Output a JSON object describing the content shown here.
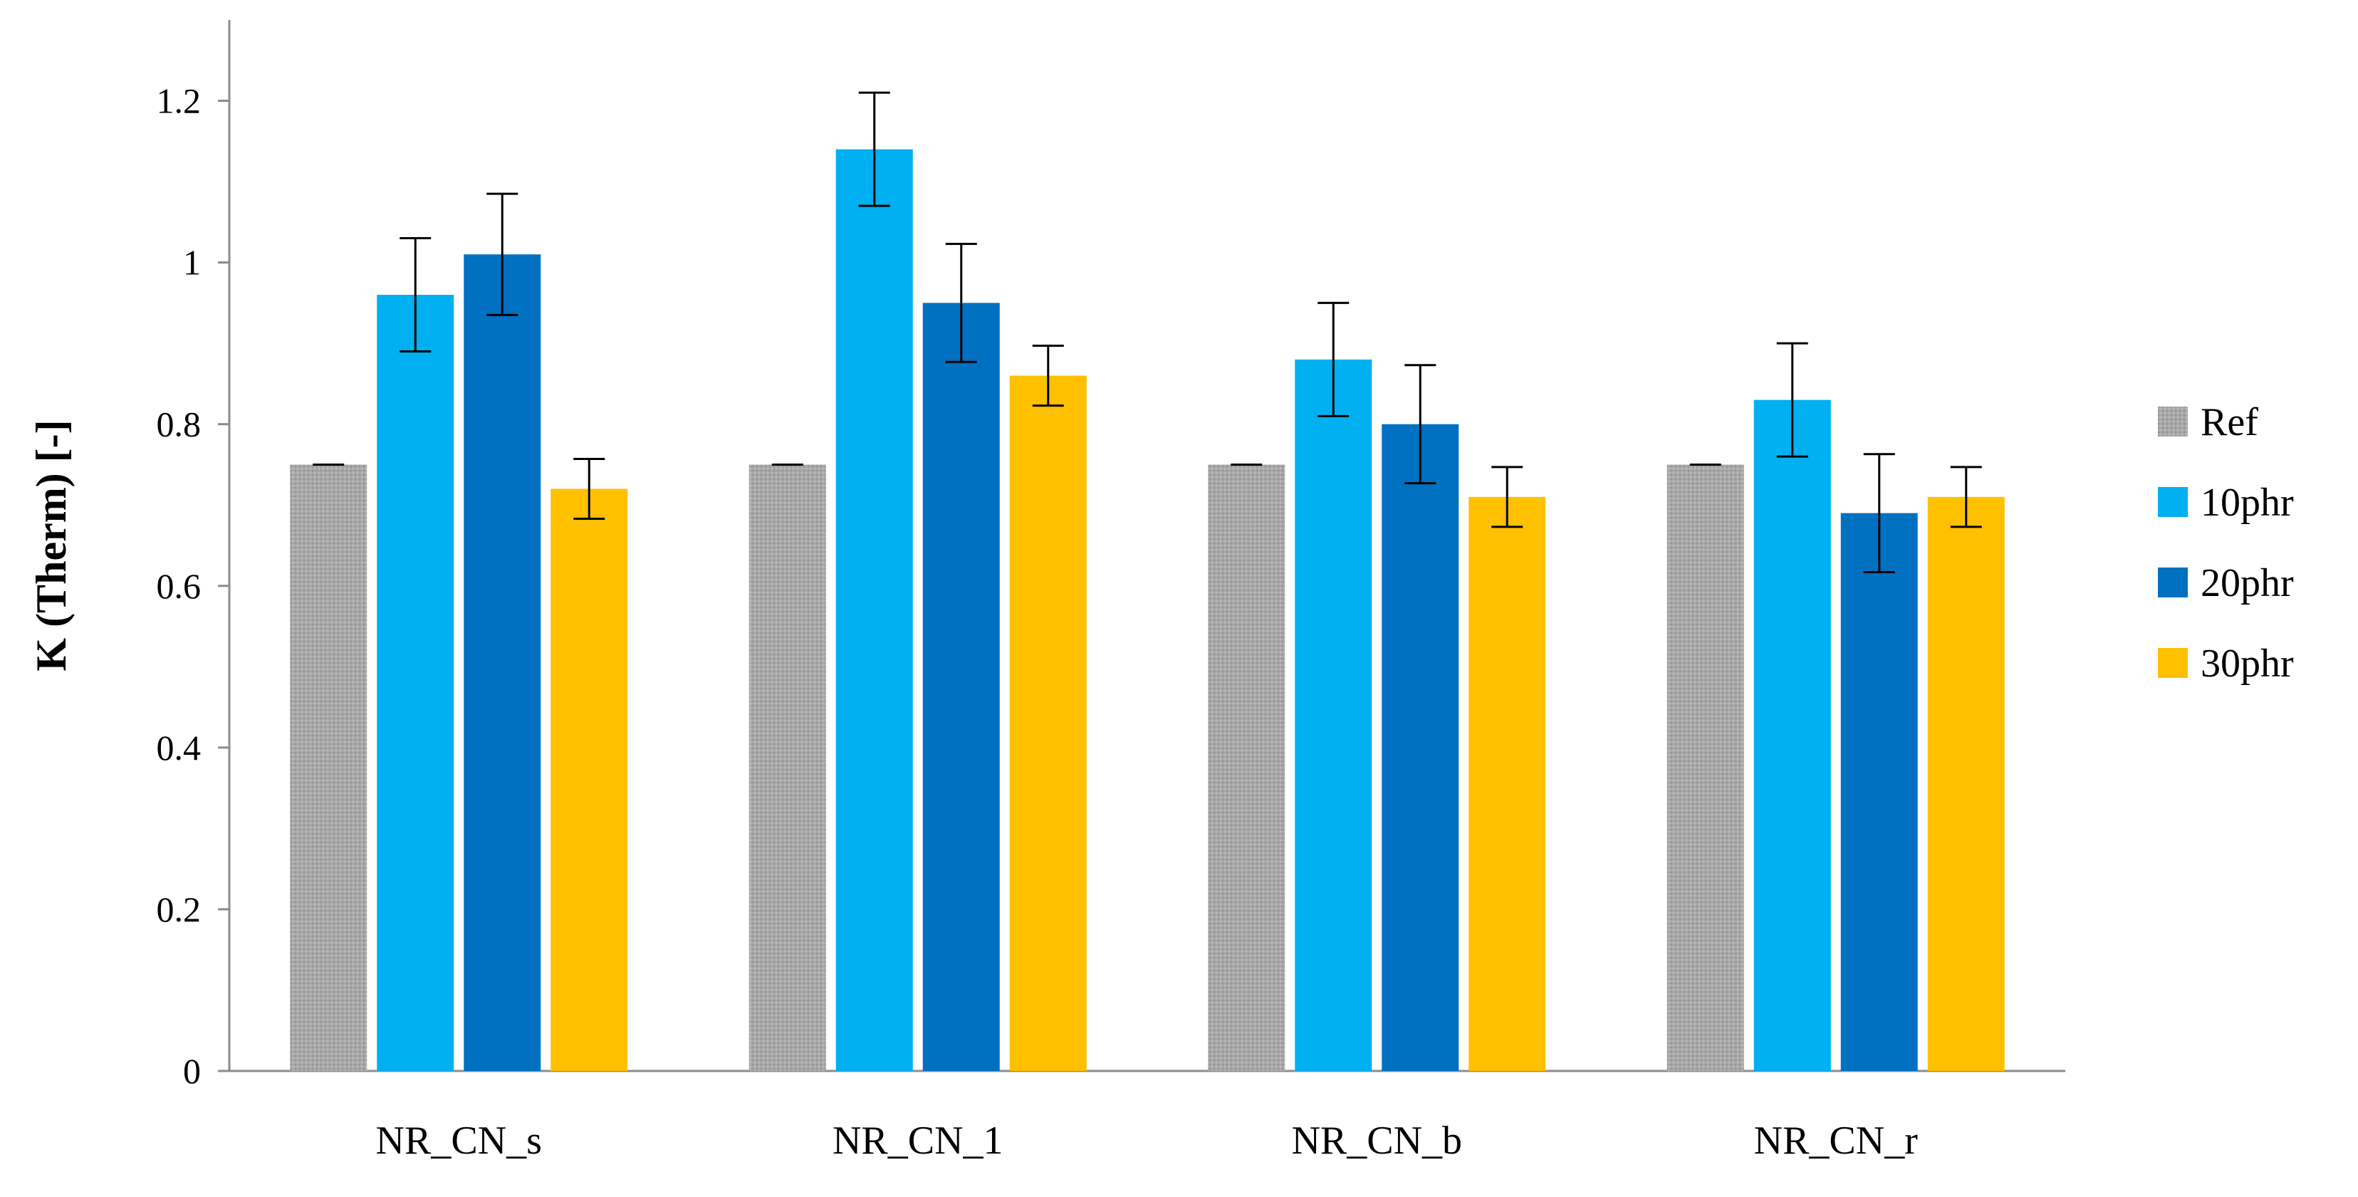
{
  "chart_data": {
    "type": "bar",
    "title": "",
    "xlabel": "",
    "ylabel": "K (Therm) [-]",
    "ylim": [
      0,
      1.3
    ],
    "yticks": [
      0,
      0.2,
      0.4,
      0.6,
      0.8,
      1,
      1.2
    ],
    "ytick_labels": [
      "0",
      "0.2",
      "0.4",
      "0.6",
      "0.8",
      "1",
      "1.2"
    ],
    "grid": false,
    "legend_position": "right",
    "categories": [
      "NR_CN_s",
      "NR_CN_1",
      "NR_CN_b",
      "NR_CN_r"
    ],
    "series": [
      {
        "name": "Ref",
        "color": "#A6A6A6",
        "pattern": "dotted-gray",
        "values": [
          0.75,
          0.75,
          0.75,
          0.75
        ],
        "errors": [
          0,
          0,
          0,
          0
        ]
      },
      {
        "name": "10phr",
        "color": "#00B0F0",
        "values": [
          0.96,
          1.14,
          0.88,
          0.83
        ],
        "errors": [
          0.07,
          0.07,
          0.07,
          0.07
        ]
      },
      {
        "name": "20phr",
        "color": "#0070C0",
        "values": [
          1.01,
          0.95,
          0.8,
          0.69
        ],
        "errors": [
          0.075,
          0.073,
          0.073,
          0.073
        ]
      },
      {
        "name": "30phr",
        "color": "#FFC000",
        "values": [
          0.72,
          0.86,
          0.71,
          0.71
        ],
        "errors": [
          0.037,
          0.037,
          0.037,
          0.037
        ]
      }
    ]
  }
}
